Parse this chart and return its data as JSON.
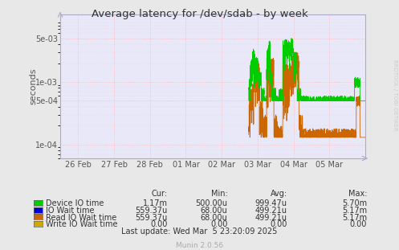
{
  "title": "Average latency for /dev/sdab - by week",
  "ylabel": "seconds",
  "background_color": "#e8e8e8",
  "plot_bg_color": "#e8e8f8",
  "grid_color_major": "#ffaaaa",
  "grid_color_minor": "#ddcccc",
  "xlim": [
    0,
    8.5
  ],
  "ylim": [
    6e-05,
    0.012
  ],
  "xtick_labels": [
    "26 Feb",
    "27 Feb",
    "28 Feb",
    "01 Mar",
    "02 Mar",
    "03 Mar",
    "04 Mar",
    "05 Mar"
  ],
  "xtick_positions": [
    0.5,
    1.5,
    2.5,
    3.5,
    4.5,
    5.5,
    6.5,
    7.5
  ],
  "ytick_positions": [
    0.0001,
    0.0005,
    0.001,
    0.005
  ],
  "ytick_labels": [
    "1e-04",
    "5e-04",
    "1e-03",
    "5e-03"
  ],
  "color_green": "#00cc00",
  "color_blue": "#0000cc",
  "color_orange": "#cc6600",
  "color_yellow": "#ccaa00",
  "legend_labels": [
    "Device IO time",
    "IO Wait time",
    "Read IO Wait time",
    "Write IO Wait time"
  ],
  "legend_cur": [
    "1.17m",
    "559.37u",
    "559.37u",
    "0.00"
  ],
  "legend_min": [
    "500.00u",
    "68.00u",
    "68.00u",
    "0.00"
  ],
  "legend_avg": [
    "999.47u",
    "499.21u",
    "499.21u",
    "0.00"
  ],
  "legend_max": [
    "5.70m",
    "5.17m",
    "5.17m",
    "0.00"
  ],
  "footer": "Munin 2.0.56",
  "watermark": "RRDTOOL / TOBI OETIKER",
  "last_update": "Last update: Wed Mar  5 23:20:09 2025"
}
